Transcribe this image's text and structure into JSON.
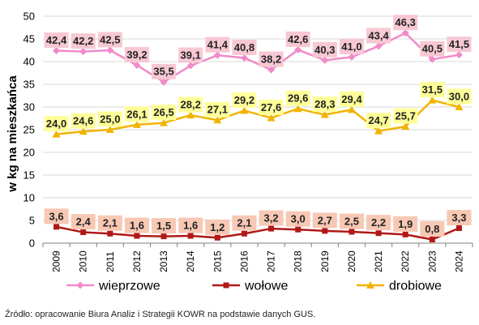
{
  "chart_data": {
    "type": "line",
    "categories": [
      "2009",
      "2010",
      "2011",
      "2012",
      "2013",
      "2014",
      "2015",
      "2016",
      "2017",
      "2018",
      "2019",
      "2020",
      "2021",
      "2022",
      "2023",
      "2024"
    ],
    "ylabel": "w kg na mieszkańca",
    "ylim": [
      0,
      50
    ],
    "yticks": [
      "0",
      "5",
      "10",
      "15",
      "20",
      "25",
      "30",
      "35",
      "40",
      "45",
      "50"
    ],
    "grid": true,
    "legend_position": "bottom",
    "series": [
      {
        "name": "wieprzowe",
        "color": "#f08bc8",
        "label_bg": "#f7c8d4",
        "marker": "diamond",
        "values": [
          42.4,
          42.2,
          42.5,
          39.2,
          35.5,
          39.1,
          41.4,
          40.8,
          38.2,
          42.6,
          40.3,
          41.0,
          43.4,
          46.3,
          40.5,
          41.5
        ],
        "labels": [
          "42,4",
          "42,2",
          "42,5",
          "39,2",
          "35,5",
          "39,1",
          "41,4",
          "40,8",
          "38,2",
          "42,6",
          "40,3",
          "41,0",
          "43,4",
          "46,3",
          "40,5",
          "41,5"
        ]
      },
      {
        "name": "wołowe",
        "color": "#b01818",
        "label_bg": "#f7c8b4",
        "marker": "square",
        "values": [
          3.6,
          2.4,
          2.1,
          1.6,
          1.5,
          1.6,
          1.2,
          2.1,
          3.2,
          3.0,
          2.7,
          2.5,
          2.2,
          1.9,
          0.8,
          3.3
        ],
        "labels": [
          "3,6",
          "2,4",
          "2,1",
          "1,6",
          "1,5",
          "1,6",
          "1,2",
          "2,1",
          "3,2",
          "3,0",
          "2,7",
          "2,5",
          "2,2",
          "1,9",
          "0,8",
          "3,3"
        ]
      },
      {
        "name": "drobiowe",
        "color": "#f0b400",
        "label_bg": "#ffff99",
        "marker": "triangle",
        "values": [
          24.0,
          24.6,
          25.0,
          26.1,
          26.5,
          28.2,
          27.1,
          29.2,
          27.6,
          29.6,
          28.3,
          29.4,
          24.7,
          25.7,
          31.5,
          30.0
        ],
        "labels": [
          "24,0",
          "24,6",
          "25,0",
          "26,1",
          "26,5",
          "28,2",
          "27,1",
          "29,2",
          "27,6",
          "29,6",
          "28,3",
          "29,4",
          "24,7",
          "25,7",
          "31,5",
          "30,0"
        ]
      }
    ]
  },
  "source_note": "Źródło: opracowanie  Biura Analiz i Strategii KOWR na podstawie  danych GUS."
}
